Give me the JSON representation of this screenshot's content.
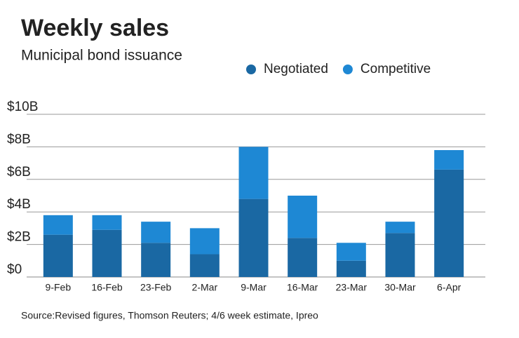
{
  "chart_data": {
    "type": "stacked-bar",
    "title": "Weekly sales",
    "subtitle": "Municipal bond issuance",
    "source": "Source:Revised figures, Thomson Reuters; 4/6 week estimate, Ipreo",
    "categories": [
      "9-Feb",
      "16-Feb",
      "23-Feb",
      "2-Mar",
      "9-Mar",
      "16-Mar",
      "23-Mar",
      "30-Mar",
      "6-Apr"
    ],
    "series": [
      {
        "name": "Negotiated",
        "color": "#1a68a3",
        "values": [
          2.6,
          2.9,
          2.1,
          1.4,
          4.8,
          2.4,
          1.0,
          2.7,
          6.6
        ]
      },
      {
        "name": "Competitive",
        "color": "#1e88d4",
        "values": [
          1.2,
          0.9,
          1.3,
          1.6,
          3.2,
          2.6,
          1.1,
          0.7,
          1.2
        ]
      }
    ],
    "ylim": [
      0,
      10
    ],
    "yticks": [
      {
        "value": 0,
        "label": "$0"
      },
      {
        "value": 2,
        "label": "$2B"
      },
      {
        "value": 4,
        "label": "$4B"
      },
      {
        "value": 6,
        "label": "$6B"
      },
      {
        "value": 8,
        "label": "$8B"
      },
      {
        "value": 10,
        "label": "$10B"
      }
    ],
    "grid": true
  }
}
